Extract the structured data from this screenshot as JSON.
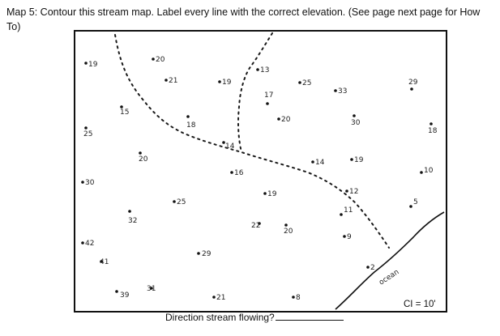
{
  "instructions": "Map 5: Contour this stream map. Label every line with the correct elevation. (See page next page for How To)",
  "contour_interval": "CI = 10'",
  "ocean_label": "ocean",
  "question": "Direction stream flowing?",
  "elevation_points": [
    {
      "label": "19"
    },
    {
      "label": "20"
    },
    {
      "label": "21"
    },
    {
      "label": "19"
    },
    {
      "label": "13"
    },
    {
      "label": "25"
    },
    {
      "label": "33"
    },
    {
      "label": "29"
    },
    {
      "label": "15"
    },
    {
      "label": "17"
    },
    {
      "label": "20"
    },
    {
      "label": "30"
    },
    {
      "label": "18"
    },
    {
      "label": "25"
    },
    {
      "label": "18"
    },
    {
      "label": "14"
    },
    {
      "label": "20"
    },
    {
      "label": "14"
    },
    {
      "label": "19"
    },
    {
      "label": "10"
    },
    {
      "label": "30"
    },
    {
      "label": "16"
    },
    {
      "label": "19"
    },
    {
      "label": "12"
    },
    {
      "label": "25"
    },
    {
      "label": "5"
    },
    {
      "label": "11"
    },
    {
      "label": "32"
    },
    {
      "label": "22"
    },
    {
      "label": "20"
    },
    {
      "label": "9"
    },
    {
      "label": "42"
    },
    {
      "label": "41"
    },
    {
      "label": "29"
    },
    {
      "label": "2"
    },
    {
      "label": "31"
    },
    {
      "label": "39"
    },
    {
      "label": "21"
    },
    {
      "label": "8"
    }
  ]
}
